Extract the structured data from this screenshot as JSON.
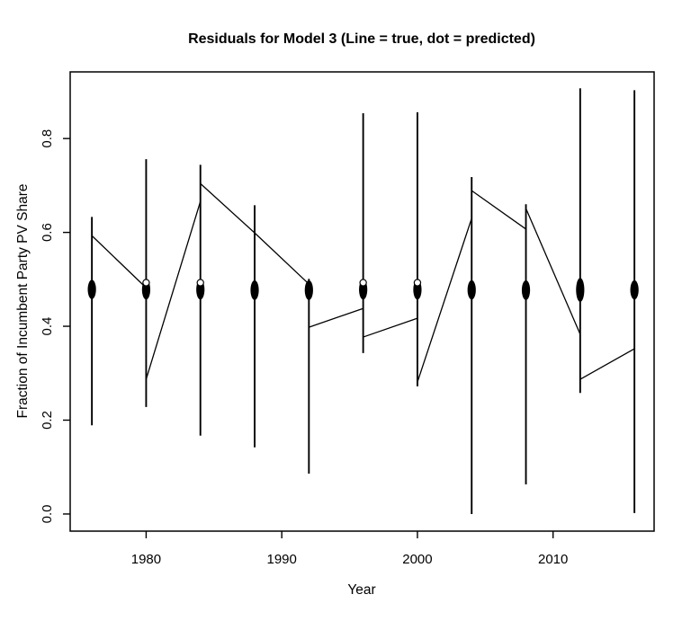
{
  "page": {
    "background": "#ffffff",
    "foreground": "#000000"
  },
  "chart_data": {
    "type": "line",
    "title": "Residuals for Model 3 (Line = true, dot = predicted)",
    "xlabel": "Year",
    "ylabel": "Fraction of Incumbent Party PV Share",
    "legend_note": "Line = true, dot = predicted",
    "grid": false,
    "line_color": "#000000",
    "dot_color": "#000000",
    "xlim": [
      1974.4,
      2017.45
    ],
    "ylim": [
      -0.0365,
      0.942
    ],
    "x_ticks": [
      {
        "value": 1980,
        "label": "1980"
      },
      {
        "value": 1990,
        "label": "1990"
      },
      {
        "value": 2000,
        "label": "2000"
      },
      {
        "value": 2010,
        "label": "2010"
      }
    ],
    "y_ticks": [
      {
        "value": 0.0,
        "label": "0.0"
      },
      {
        "value": 0.2,
        "label": "0.2"
      },
      {
        "value": 0.4,
        "label": "0.4"
      },
      {
        "value": 0.6,
        "label": "0.6"
      },
      {
        "value": 0.8,
        "label": "0.8"
      }
    ],
    "years": [
      {
        "year": 1976,
        "true_min": 0.189,
        "true_max": 0.633,
        "transition_in": null,
        "transition_out": 0.593,
        "predicted_min": 0.458,
        "predicted_max": 0.499,
        "open_circle_top": false
      },
      {
        "year": 1980,
        "true_min": 0.228,
        "true_max": 0.756,
        "transition_in": 0.482,
        "transition_out": 0.287,
        "predicted_min": 0.457,
        "predicted_max": 0.499,
        "open_circle_top": true
      },
      {
        "year": 1984,
        "true_min": 0.167,
        "true_max": 0.744,
        "transition_in": 0.666,
        "transition_out": 0.704,
        "predicted_min": 0.457,
        "predicted_max": 0.499,
        "open_circle_top": true
      },
      {
        "year": 1988,
        "true_min": 0.142,
        "true_max": 0.658,
        "transition_in": 0.599,
        "transition_out": 0.599,
        "predicted_min": 0.456,
        "predicted_max": 0.498,
        "open_circle_top": false
      },
      {
        "year": 1992,
        "true_min": 0.086,
        "true_max": 0.501,
        "transition_in": 0.49,
        "transition_out": 0.398,
        "predicted_min": 0.456,
        "predicted_max": 0.498,
        "open_circle_top": false
      },
      {
        "year": 1996,
        "true_min": 0.343,
        "true_max": 0.854,
        "transition_in": 0.438,
        "transition_out": 0.377,
        "predicted_min": 0.457,
        "predicted_max": 0.499,
        "open_circle_top": true
      },
      {
        "year": 2000,
        "true_min": 0.272,
        "true_max": 0.856,
        "transition_in": 0.417,
        "transition_out": 0.281,
        "predicted_min": 0.457,
        "predicted_max": 0.499,
        "open_circle_top": true
      },
      {
        "year": 2004,
        "true_min": 0.0,
        "true_max": 0.718,
        "transition_in": 0.63,
        "transition_out": 0.689,
        "predicted_min": 0.457,
        "predicted_max": 0.498,
        "open_circle_top": false
      },
      {
        "year": 2008,
        "true_min": 0.063,
        "true_max": 0.66,
        "transition_in": 0.607,
        "transition_out": 0.651,
        "predicted_min": 0.456,
        "predicted_max": 0.498,
        "open_circle_top": false
      },
      {
        "year": 2012,
        "true_min": 0.258,
        "true_max": 0.907,
        "transition_in": 0.383,
        "transition_out": 0.287,
        "predicted_min": 0.452,
        "predicted_max": 0.503,
        "open_circle_top": false
      },
      {
        "year": 2016,
        "true_min": 0.002,
        "true_max": 0.903,
        "transition_in": 0.352,
        "transition_out": null,
        "predicted_min": 0.457,
        "predicted_max": 0.498,
        "open_circle_top": false
      }
    ]
  }
}
